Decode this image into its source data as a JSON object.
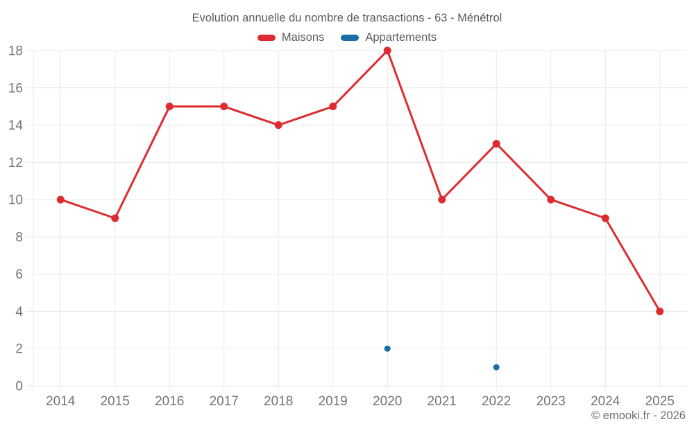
{
  "header": {
    "title": "Evolution annuelle du nombre de transactions - 63 - Ménétrol"
  },
  "legend": {
    "items": [
      {
        "label": "Maisons",
        "color": "#dd2c2f"
      },
      {
        "label": "Appartements",
        "color": "#1a6ea5"
      }
    ]
  },
  "footer": {
    "credit": "© emooki.fr - 2026"
  },
  "chart_data": {
    "type": "line",
    "title": "Evolution annuelle du nombre de transactions - 63 - Ménétrol",
    "categories": [
      "2014",
      "2015",
      "2016",
      "2017",
      "2018",
      "2019",
      "2020",
      "2021",
      "2022",
      "2023",
      "2024",
      "2025"
    ],
    "series": [
      {
        "name": "Maisons",
        "color": "#dd2c2f",
        "draw_line": true,
        "line_width": 3,
        "marker_radius": 5.5,
        "values": [
          10,
          9,
          15,
          15,
          14,
          15,
          18,
          10,
          13,
          10,
          9,
          4
        ]
      },
      {
        "name": "Appartements",
        "color": "#1a6ea5",
        "draw_line": false,
        "line_width": 0,
        "marker_radius": 4.5,
        "values": [
          null,
          null,
          null,
          null,
          null,
          null,
          2,
          null,
          1,
          null,
          null,
          null
        ]
      }
    ],
    "xlabel": "",
    "ylabel": "",
    "ylim": [
      0,
      18
    ],
    "ytick_step": 2,
    "grid": true,
    "legend_position": "top",
    "axis_text_color": "#737373",
    "grid_color": "#e9e9e9"
  }
}
